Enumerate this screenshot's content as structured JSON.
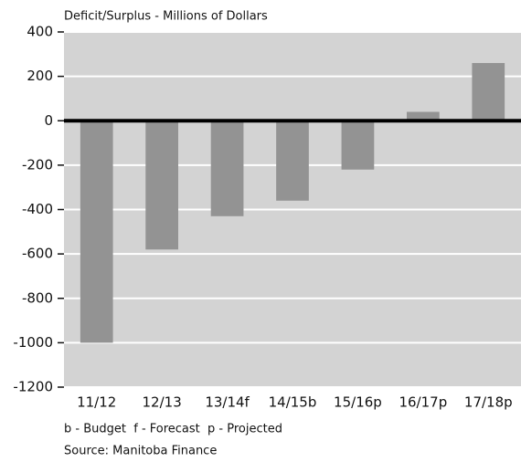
{
  "chart_data": {
    "type": "bar",
    "title": "Deficit/Surplus - Millions of Dollars",
    "categories": [
      "11/12",
      "12/13",
      "13/14f",
      "14/15b",
      "15/16p",
      "16/17p",
      "17/18p"
    ],
    "values": [
      -1000,
      -580,
      -430,
      -360,
      -220,
      40,
      260
    ],
    "color": "#939393",
    "ylim": [
      -1200,
      400
    ],
    "yticks": [
      -1200,
      -1000,
      -800,
      -600,
      -400,
      -200,
      0,
      200,
      400
    ],
    "grid": true,
    "notes": [
      "b - Budget  f - Forecast  p - Projected",
      "Source: Manitoba Finance"
    ]
  }
}
